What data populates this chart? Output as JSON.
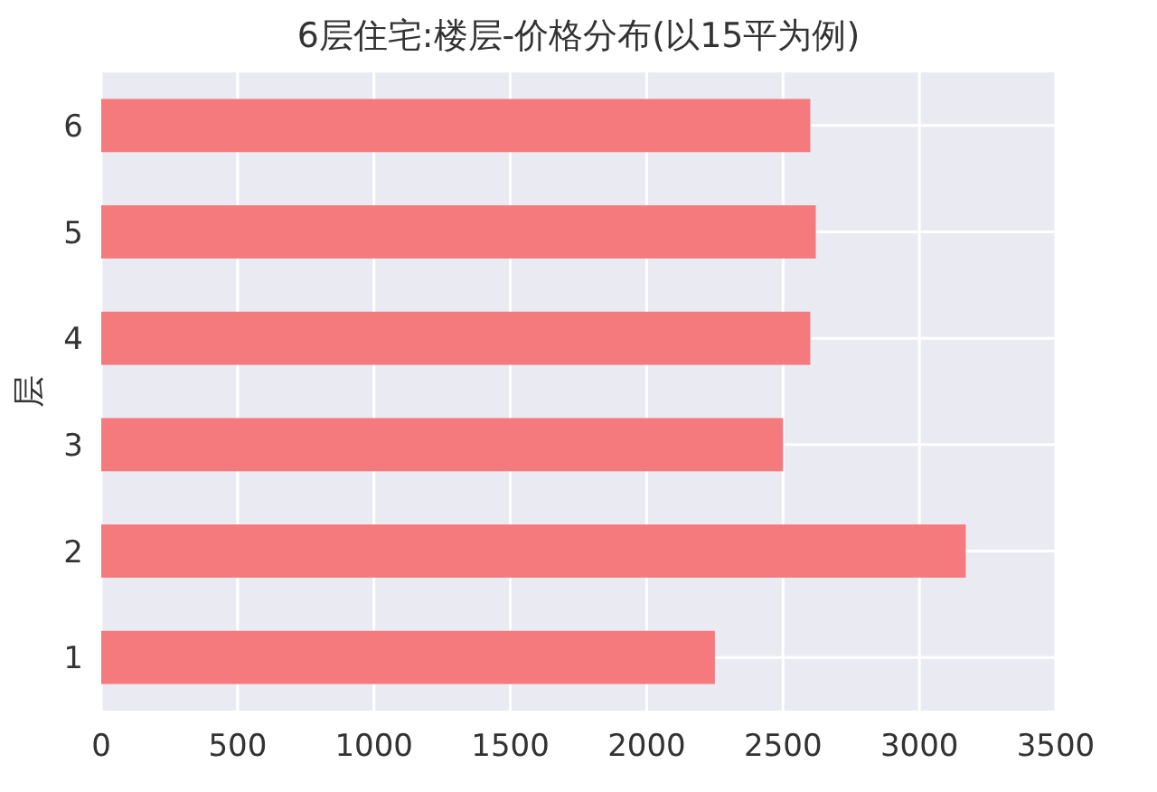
{
  "chart_data": {
    "type": "bar",
    "orientation": "horizontal",
    "title": "6层住宅:楼层-价格分布(以15平为例)",
    "ylabel": "层",
    "categories": [
      "6",
      "5",
      "4",
      "3",
      "2",
      "1"
    ],
    "values": [
      2600,
      2620,
      2600,
      2500,
      3170,
      2250
    ],
    "color": "#f47a7e",
    "xlim": [
      0,
      3500
    ],
    "xticks": [
      0,
      500,
      1000,
      1500,
      2000,
      2500,
      3000,
      3500
    ],
    "grid": true
  }
}
